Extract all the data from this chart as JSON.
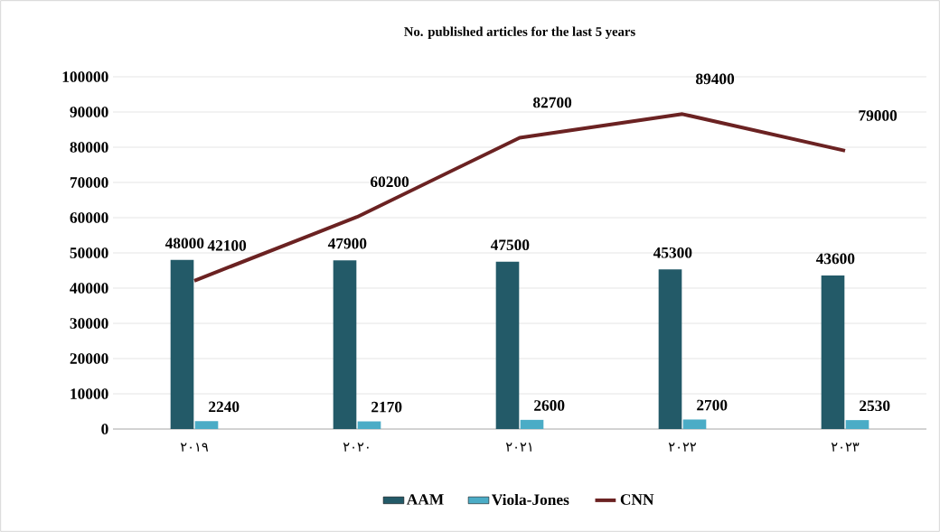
{
  "chart_data": {
    "type": "bar",
    "title": "No. published articles for the last 5 years",
    "categories": [
      "٢٠١٩",
      "٢٠٢٠",
      "٢٠٢١",
      "٢٠٢٢",
      "٢٠٢٣"
    ],
    "series": [
      {
        "name": "AAM",
        "color": "#235a68",
        "values": [
          48000,
          47900,
          47500,
          45300,
          43600
        ]
      },
      {
        "name": "Viola-Jones",
        "color": "#4bacc6",
        "values": [
          2240,
          2170,
          2600,
          2700,
          2530
        ]
      },
      {
        "name": "CNN",
        "type": "line",
        "color": "#6b2222",
        "values": [
          42100,
          60200,
          82700,
          89400,
          79000
        ]
      }
    ],
    "ylim": [
      0,
      100000
    ],
    "yticks": [
      0,
      10000,
      20000,
      30000,
      40000,
      50000,
      60000,
      70000,
      80000,
      90000,
      100000
    ],
    "grid": "y",
    "legend": "bottom",
    "data_labels": true,
    "marker": "none"
  }
}
